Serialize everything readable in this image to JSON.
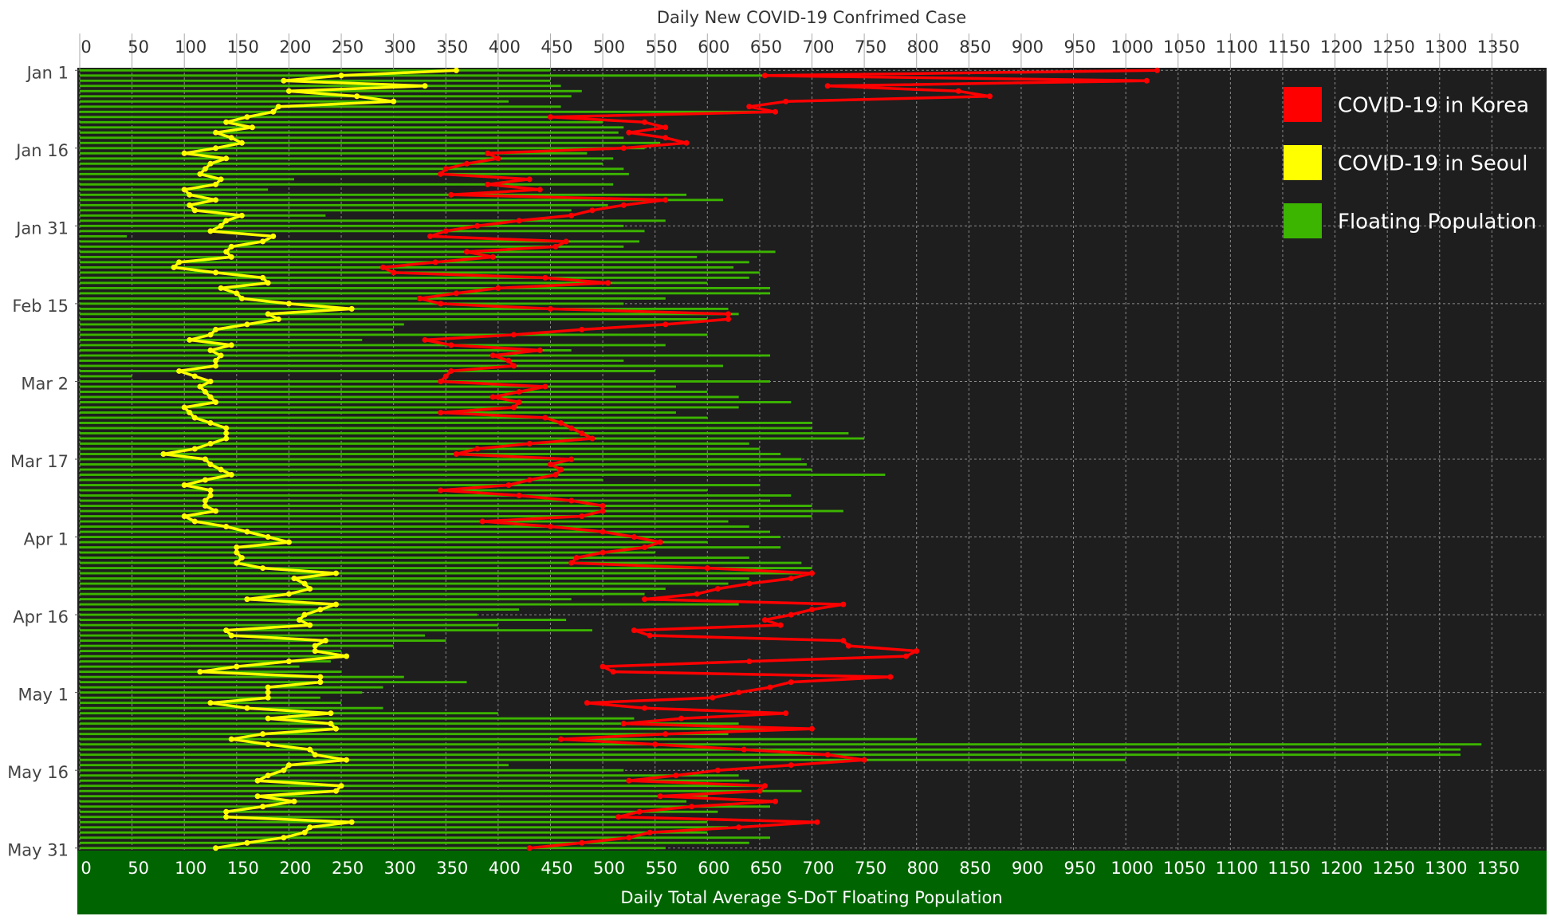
{
  "chart_data": {
    "type": "bar-line",
    "title": "Daily New COVID-19 Confrimed Case",
    "xlabel": "Daily Total Average S-DoT Floating Population",
    "categories": [
      "Jan 1",
      null,
      null,
      null,
      null,
      null,
      null,
      null,
      null,
      null,
      null,
      null,
      null,
      null,
      null,
      "Jan 16",
      null,
      null,
      null,
      null,
      null,
      null,
      null,
      null,
      null,
      null,
      null,
      null,
      null,
      null,
      "Jan 31",
      null,
      null,
      null,
      null,
      null,
      null,
      null,
      null,
      null,
      null,
      null,
      null,
      null,
      null,
      "Feb 15",
      null,
      null,
      null,
      null,
      null,
      null,
      null,
      null,
      null,
      null,
      null,
      null,
      null,
      null,
      "Mar 2",
      null,
      null,
      null,
      null,
      null,
      null,
      null,
      null,
      null,
      null,
      null,
      null,
      null,
      null,
      "Mar 17",
      null,
      null,
      null,
      null,
      null,
      null,
      null,
      null,
      null,
      null,
      null,
      null,
      null,
      null,
      "Apr 1",
      null,
      null,
      null,
      null,
      null,
      null,
      null,
      null,
      null,
      null,
      null,
      null,
      null,
      null,
      "Apr 16",
      null,
      null,
      null,
      null,
      null,
      null,
      null,
      null,
      null,
      null,
      null,
      null,
      null,
      null,
      "May 1",
      null,
      null,
      null,
      null,
      null,
      null,
      null,
      null,
      null,
      null,
      null,
      null,
      null,
      null,
      "May 16",
      null,
      null,
      null,
      null,
      null,
      null,
      null,
      null,
      null,
      null,
      null,
      null,
      null,
      null,
      "May 31"
    ],
    "series": [
      {
        "name": "COVID-19 in Korea",
        "color": "#ff0000",
        "kind": "line",
        "values": [
          1030,
          655,
          1020,
          715,
          840,
          870,
          675,
          640,
          665,
          450,
          540,
          560,
          525,
          560,
          580,
          520,
          390,
          400,
          370,
          350,
          345,
          430,
          390,
          440,
          355,
          560,
          520,
          490,
          470,
          420,
          380,
          350,
          335,
          465,
          455,
          370,
          395,
          340,
          290,
          300,
          445,
          505,
          400,
          360,
          325,
          345,
          450,
          620,
          620,
          560,
          480,
          415,
          330,
          355,
          440,
          395,
          410,
          415,
          355,
          350,
          345,
          445,
          420,
          395,
          420,
          415,
          345,
          445,
          460,
          470,
          480,
          490,
          430,
          380,
          360,
          470,
          450,
          460,
          455,
          430,
          410,
          345,
          420,
          470,
          500,
          500,
          480,
          385,
          450,
          500,
          530,
          555,
          540,
          500,
          475,
          470,
          600,
          700,
          680,
          640,
          610,
          590,
          540,
          730,
          700,
          680,
          655,
          670,
          530,
          545,
          730,
          735,
          800,
          790,
          640,
          500,
          510,
          775,
          680,
          660,
          630,
          605,
          485,
          540,
          675,
          575,
          520,
          700,
          560,
          460,
          550,
          635,
          715,
          750,
          680,
          610,
          570,
          525,
          655,
          650,
          555,
          665,
          585,
          535,
          515,
          705,
          630,
          545,
          525,
          480,
          430
        ]
      },
      {
        "name": "COVID-19 in Seoul",
        "color": "#ffff00",
        "kind": "line",
        "values": [
          360,
          250,
          195,
          330,
          200,
          265,
          300,
          190,
          185,
          160,
          140,
          165,
          130,
          145,
          155,
          130,
          100,
          140,
          125,
          120,
          115,
          135,
          130,
          100,
          105,
          130,
          105,
          110,
          155,
          140,
          135,
          125,
          185,
          175,
          145,
          140,
          145,
          95,
          90,
          130,
          175,
          180,
          135,
          150,
          155,
          200,
          260,
          180,
          190,
          160,
          130,
          125,
          105,
          145,
          125,
          135,
          130,
          130,
          95,
          110,
          125,
          115,
          120,
          125,
          130,
          100,
          105,
          110,
          125,
          140,
          140,
          140,
          125,
          110,
          80,
          120,
          125,
          135,
          145,
          120,
          100,
          125,
          125,
          120,
          120,
          130,
          100,
          110,
          140,
          160,
          180,
          200,
          150,
          150,
          155,
          150,
          175,
          245,
          205,
          215,
          220,
          200,
          160,
          245,
          230,
          215,
          210,
          220,
          140,
          145,
          235,
          225,
          225,
          255,
          200,
          150,
          115,
          230,
          230,
          180,
          180,
          180,
          125,
          160,
          240,
          180,
          240,
          245,
          175,
          145,
          180,
          220,
          225,
          255,
          200,
          195,
          180,
          170,
          250,
          245,
          170,
          205,
          175,
          140,
          140,
          260,
          220,
          215,
          195,
          160,
          130
        ]
      },
      {
        "name": "Floating Population",
        "color": "#3cb500",
        "kind": "bar",
        "values": [
          450,
          655,
          450,
          460,
          480,
          470,
          410,
          460,
          650,
          460,
          500,
          520,
          515,
          520,
          555,
          540,
          485,
          510,
          500,
          520,
          525,
          205,
          510,
          180,
          580,
          615,
          505,
          470,
          235,
          560,
          520,
          540,
          45,
          535,
          520,
          665,
          590,
          640,
          625,
          650,
          640,
          600,
          660,
          660,
          560,
          520,
          620,
          630,
          600,
          310,
          300,
          600,
          270,
          560,
          470,
          660,
          520,
          615,
          550,
          50,
          660,
          570,
          600,
          630,
          680,
          630,
          570,
          600,
          700,
          700,
          735,
          750,
          640,
          650,
          670,
          690,
          695,
          700,
          770,
          500,
          650,
          600,
          680,
          660,
          700,
          730,
          700,
          620,
          640,
          660,
          670,
          600,
          670,
          550,
          640,
          690,
          700,
          690,
          640,
          620,
          560,
          540,
          470,
          630,
          420,
          380,
          465,
          400,
          490,
          330,
          350,
          300,
          250,
          250,
          240,
          210,
          250,
          310,
          370,
          290,
          270,
          230,
          250,
          290,
          400,
          530,
          630,
          660,
          620,
          800,
          1340,
          1320,
          1320,
          1000,
          410,
          520,
          630,
          640,
          650,
          690,
          600,
          580,
          660,
          610,
          520,
          600,
          620,
          600,
          660,
          640,
          560
        ]
      }
    ],
    "xlim": [
      0,
      1400
    ],
    "xticks": [
      0,
      50,
      100,
      150,
      200,
      250,
      300,
      350,
      400,
      450,
      500,
      550,
      600,
      650,
      700,
      750,
      800,
      850,
      900,
      950,
      1000,
      1050,
      1100,
      1150,
      1200,
      1250,
      1300,
      1350
    ],
    "x2ticks": [
      0,
      50,
      100,
      150,
      200,
      250,
      300,
      350,
      400,
      450,
      500,
      550,
      600,
      650,
      700,
      750,
      800,
      850,
      900,
      950,
      1000,
      1050,
      1100,
      1150,
      1200,
      1250,
      1300,
      1350
    ],
    "grid": true,
    "legend": "top-right"
  }
}
